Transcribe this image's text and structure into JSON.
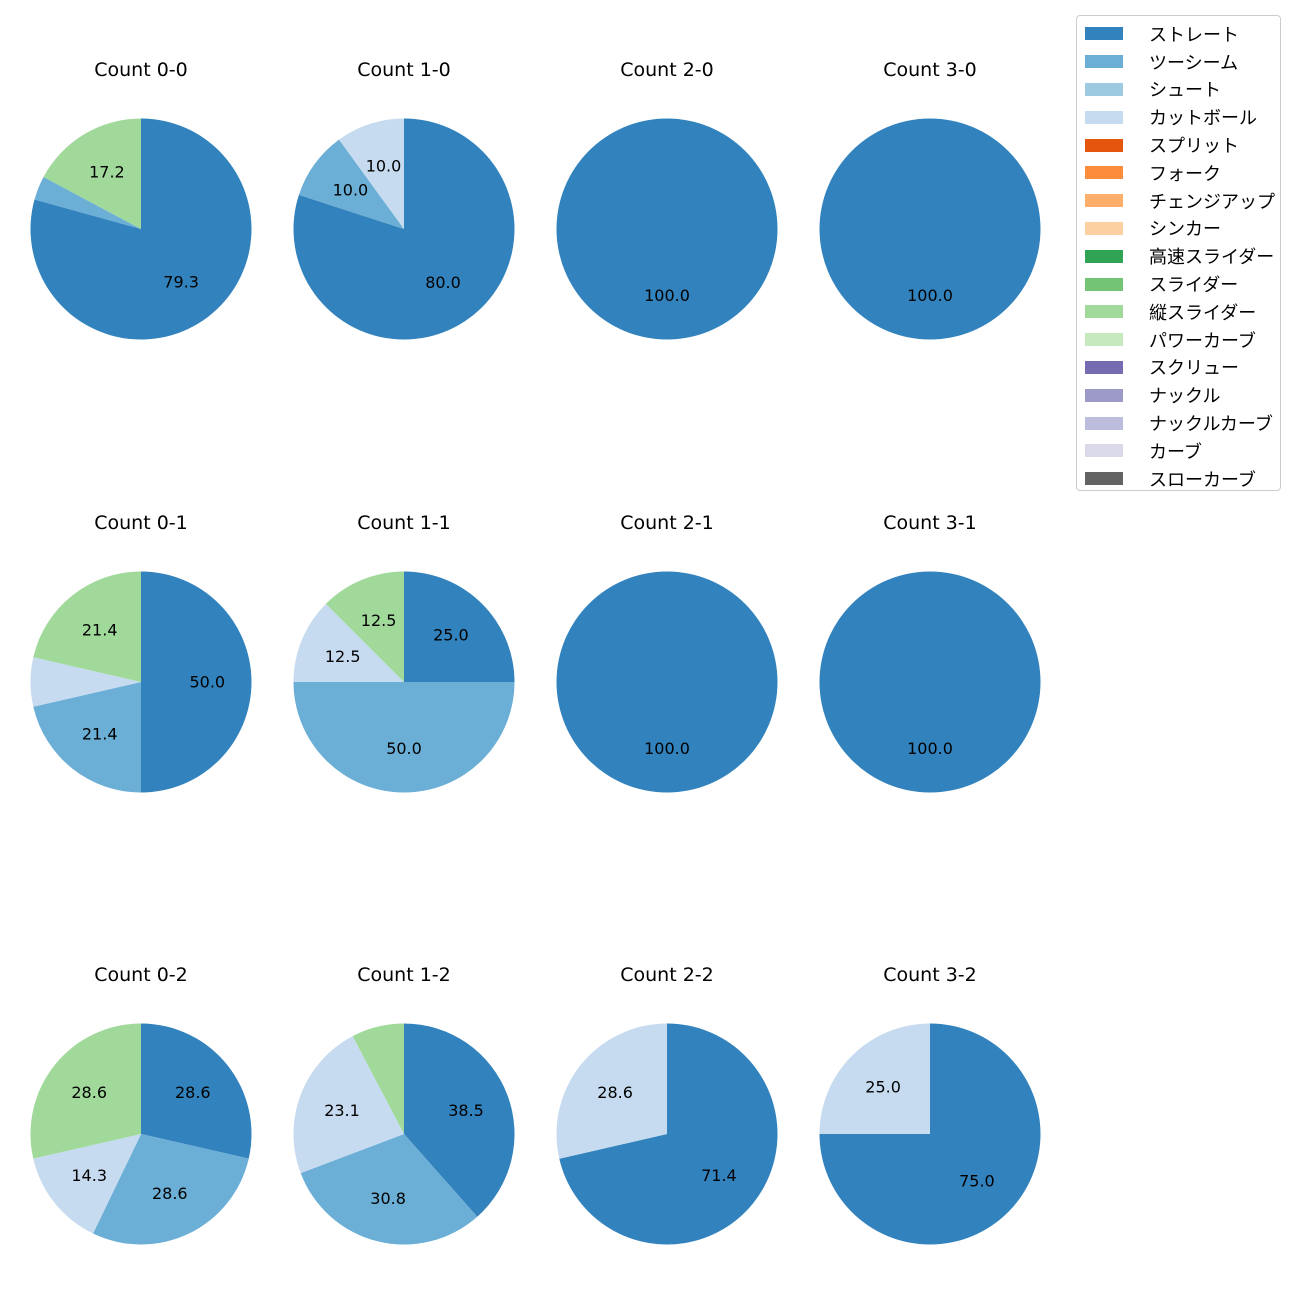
{
  "chart_data": {
    "type": "pie",
    "title": "",
    "legend": {
      "position": "top-right",
      "entries": [
        {
          "name": "ストレート",
          "color": "#3182bd"
        },
        {
          "name": "ツーシーム",
          "color": "#6baed6"
        },
        {
          "name": "シュート",
          "color": "#9ecae1"
        },
        {
          "name": "カットボール",
          "color": "#c6dbef"
        },
        {
          "name": "スプリット",
          "color": "#e6550d"
        },
        {
          "name": "フォーク",
          "color": "#fd8d3c"
        },
        {
          "name": "チェンジアップ",
          "color": "#fdae6b"
        },
        {
          "name": "シンカー",
          "color": "#fdd0a2"
        },
        {
          "name": "高速スライダー",
          "color": "#31a354"
        },
        {
          "name": "スライダー",
          "color": "#74c476"
        },
        {
          "name": "縦スライダー",
          "color": "#a1d99b"
        },
        {
          "name": "パワーカーブ",
          "color": "#c7e9c0"
        },
        {
          "name": "スクリュー",
          "color": "#756bb1"
        },
        {
          "name": "ナックル",
          "color": "#9e9ac8"
        },
        {
          "name": "ナックルカーブ",
          "color": "#bcbddc"
        },
        {
          "name": "カーブ",
          "color": "#dadaeb"
        },
        {
          "name": "スローカーブ",
          "color": "#636363"
        }
      ]
    },
    "pies": [
      {
        "title": "Count 0-0",
        "slices": [
          {
            "name": "ストレート",
            "value": 79.3,
            "label": "79.3"
          },
          {
            "name": "ツーシーム",
            "value": 3.5,
            "label": ""
          },
          {
            "name": "縦スライダー",
            "value": 17.2,
            "label": "17.2"
          }
        ]
      },
      {
        "title": "Count 1-0",
        "slices": [
          {
            "name": "ストレート",
            "value": 80.0,
            "label": "80.0"
          },
          {
            "name": "ツーシーム",
            "value": 10.0,
            "label": "10.0"
          },
          {
            "name": "カットボール",
            "value": 10.0,
            "label": "10.0"
          }
        ]
      },
      {
        "title": "Count 2-0",
        "slices": [
          {
            "name": "ストレート",
            "value": 100.0,
            "label": "100.0"
          }
        ]
      },
      {
        "title": "Count 3-0",
        "slices": [
          {
            "name": "ストレート",
            "value": 100.0,
            "label": "100.0"
          }
        ]
      },
      {
        "title": "Count 0-1",
        "slices": [
          {
            "name": "ストレート",
            "value": 50.0,
            "label": "50.0"
          },
          {
            "name": "ツーシーム",
            "value": 21.4,
            "label": "21.4"
          },
          {
            "name": "カットボール",
            "value": 7.2,
            "label": ""
          },
          {
            "name": "縦スライダー",
            "value": 21.4,
            "label": "21.4"
          }
        ]
      },
      {
        "title": "Count 1-1",
        "slices": [
          {
            "name": "ストレート",
            "value": 25.0,
            "label": "25.0"
          },
          {
            "name": "ツーシーム",
            "value": 50.0,
            "label": "50.0"
          },
          {
            "name": "カットボール",
            "value": 12.5,
            "label": "12.5"
          },
          {
            "name": "縦スライダー",
            "value": 12.5,
            "label": "12.5"
          }
        ]
      },
      {
        "title": "Count 2-1",
        "slices": [
          {
            "name": "ストレート",
            "value": 100.0,
            "label": "100.0"
          }
        ]
      },
      {
        "title": "Count 3-1",
        "slices": [
          {
            "name": "ストレート",
            "value": 100.0,
            "label": "100.0"
          }
        ]
      },
      {
        "title": "Count 0-2",
        "slices": [
          {
            "name": "ストレート",
            "value": 28.6,
            "label": "28.6"
          },
          {
            "name": "ツーシーム",
            "value": 28.6,
            "label": "28.6"
          },
          {
            "name": "カットボール",
            "value": 14.3,
            "label": "14.3"
          },
          {
            "name": "縦スライダー",
            "value": 28.6,
            "label": "28.6"
          }
        ]
      },
      {
        "title": "Count 1-2",
        "slices": [
          {
            "name": "ストレート",
            "value": 38.5,
            "label": "38.5"
          },
          {
            "name": "ツーシーム",
            "value": 30.8,
            "label": "30.8"
          },
          {
            "name": "カットボール",
            "value": 23.1,
            "label": "23.1"
          },
          {
            "name": "縦スライダー",
            "value": 7.7,
            "label": ""
          }
        ]
      },
      {
        "title": "Count 2-2",
        "slices": [
          {
            "name": "ストレート",
            "value": 71.4,
            "label": "71.4"
          },
          {
            "name": "カットボール",
            "value": 28.6,
            "label": "28.6"
          }
        ]
      },
      {
        "title": "Count 3-2",
        "slices": [
          {
            "name": "ストレート",
            "value": 75.0,
            "label": "75.0"
          },
          {
            "name": "カットボール",
            "value": 25.0,
            "label": "25.0"
          }
        ]
      }
    ]
  }
}
